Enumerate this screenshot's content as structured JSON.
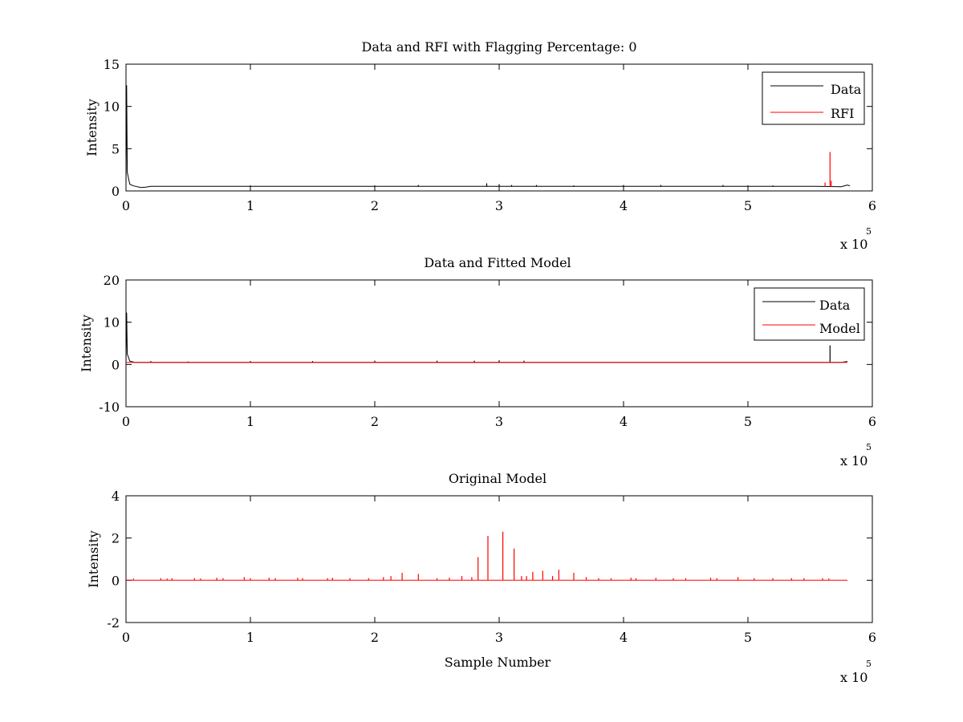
{
  "chart_data": [
    {
      "type": "line",
      "title": "Data and RFI with Flagging Percentage: 0",
      "xlabel": "",
      "ylabel": "Intensity",
      "xlim": [
        0,
        6
      ],
      "ylim": [
        0,
        15
      ],
      "x_ticks": [
        "0",
        "1",
        "2",
        "3",
        "4",
        "5",
        "6"
      ],
      "y_ticks": [
        "0",
        "5",
        "10",
        "15"
      ],
      "x_multiplier": {
        "prefix": "x 10",
        "exponent": "5"
      },
      "legend": "top-right",
      "series": [
        {
          "name": "Data",
          "color": "#000000",
          "baseline": 0.5,
          "points": [
            [
              0.0,
              0.5
            ],
            [
              0.005,
              12.5
            ],
            [
              0.01,
              2.2
            ],
            [
              0.03,
              0.8
            ],
            [
              0.06,
              0.6
            ],
            [
              0.12,
              0.4
            ],
            [
              0.16,
              0.45
            ],
            [
              0.2,
              0.55
            ],
            [
              5.5,
              0.55
            ],
            [
              5.75,
              0.5
            ],
            [
              5.8,
              0.7
            ],
            [
              5.82,
              0.6
            ]
          ],
          "spikes": [
            [
              2.35,
              0.7
            ],
            [
              2.9,
              0.9
            ],
            [
              3.0,
              0.8
            ],
            [
              3.1,
              0.7
            ],
            [
              3.3,
              0.7
            ],
            [
              3.6,
              0.65
            ],
            [
              4.0,
              0.7
            ],
            [
              4.3,
              0.7
            ],
            [
              4.8,
              0.7
            ],
            [
              5.2,
              0.65
            ]
          ]
        },
        {
          "name": "RFI",
          "color": "#ff0000",
          "baseline": 0.5,
          "points": [],
          "spikes": [
            [
              5.62,
              1.0
            ],
            [
              5.66,
              4.6
            ],
            [
              5.67,
              1.2
            ]
          ]
        }
      ]
    },
    {
      "type": "line",
      "title": "Data and Fitted Model",
      "xlabel": "",
      "ylabel": "Intensity",
      "xlim": [
        0,
        6
      ],
      "ylim": [
        -10,
        20
      ],
      "x_ticks": [
        "0",
        "1",
        "2",
        "3",
        "4",
        "5",
        "6"
      ],
      "y_ticks": [
        "-10",
        "0",
        "10",
        "20"
      ],
      "x_multiplier": {
        "prefix": "x 10",
        "exponent": "5"
      },
      "legend": "top-right",
      "series": [
        {
          "name": "Data",
          "color": "#000000",
          "baseline": 0.5,
          "points": [
            [
              0.0,
              0.5
            ],
            [
              0.005,
              12.3
            ],
            [
              0.01,
              2.5
            ],
            [
              0.03,
              0.8
            ],
            [
              0.07,
              0.5
            ],
            [
              5.75,
              0.5
            ],
            [
              5.8,
              0.7
            ]
          ],
          "spikes": [
            [
              0.2,
              0.8
            ],
            [
              0.5,
              0.7
            ],
            [
              1.0,
              0.8
            ],
            [
              1.5,
              0.8
            ],
            [
              2.0,
              0.9
            ],
            [
              2.5,
              0.9
            ],
            [
              2.8,
              0.9
            ],
            [
              3.0,
              1.0
            ],
            [
              3.2,
              0.9
            ],
            [
              5.66,
              4.5
            ]
          ]
        },
        {
          "name": "Model",
          "color": "#ff0000",
          "baseline": 0.5,
          "points": [
            [
              0.0,
              0.5
            ],
            [
              5.8,
              0.5
            ]
          ],
          "spikes": []
        }
      ]
    },
    {
      "type": "line",
      "title": "Original Model",
      "xlabel": "Sample Number",
      "ylabel": "Intensity",
      "xlim": [
        0,
        6
      ],
      "ylim": [
        -2,
        4
      ],
      "x_ticks": [
        "0",
        "1",
        "2",
        "3",
        "4",
        "5",
        "6"
      ],
      "y_ticks": [
        "-2",
        "0",
        "2",
        "4"
      ],
      "x_multiplier": {
        "prefix": "x 10",
        "exponent": "5"
      },
      "legend": "none",
      "series": [
        {
          "name": "",
          "color": "#ff0000",
          "baseline": 0.0,
          "points": [
            [
              0.0,
              0.0
            ],
            [
              5.8,
              0.0
            ]
          ],
          "spikes": [
            [
              0.06,
              0.08
            ],
            [
              0.28,
              0.1
            ],
            [
              0.33,
              0.08
            ],
            [
              0.37,
              0.1
            ],
            [
              0.55,
              0.1
            ],
            [
              0.6,
              0.08
            ],
            [
              0.73,
              0.12
            ],
            [
              0.78,
              0.1
            ],
            [
              0.95,
              0.15
            ],
            [
              1.0,
              0.1
            ],
            [
              1.15,
              0.12
            ],
            [
              1.2,
              0.1
            ],
            [
              1.38,
              0.12
            ],
            [
              1.42,
              0.1
            ],
            [
              1.62,
              0.1
            ],
            [
              1.66,
              0.12
            ],
            [
              1.8,
              0.1
            ],
            [
              1.95,
              0.1
            ],
            [
              2.07,
              0.15
            ],
            [
              2.13,
              0.2
            ],
            [
              2.22,
              0.35
            ],
            [
              2.35,
              0.3
            ],
            [
              2.5,
              0.1
            ],
            [
              2.6,
              0.12
            ],
            [
              2.7,
              0.2
            ],
            [
              2.78,
              0.15
            ],
            [
              2.83,
              1.1
            ],
            [
              2.91,
              2.1
            ],
            [
              3.03,
              2.3
            ],
            [
              3.12,
              1.5
            ],
            [
              3.18,
              0.2
            ],
            [
              3.22,
              0.2
            ],
            [
              3.27,
              0.4
            ],
            [
              3.35,
              0.45
            ],
            [
              3.43,
              0.2
            ],
            [
              3.48,
              0.5
            ],
            [
              3.6,
              0.35
            ],
            [
              3.7,
              0.15
            ],
            [
              3.8,
              0.1
            ],
            [
              3.9,
              0.1
            ],
            [
              4.06,
              0.12
            ],
            [
              4.1,
              0.1
            ],
            [
              4.26,
              0.12
            ],
            [
              4.4,
              0.1
            ],
            [
              4.5,
              0.1
            ],
            [
              4.7,
              0.12
            ],
            [
              4.75,
              0.1
            ],
            [
              4.92,
              0.15
            ],
            [
              5.05,
              0.1
            ],
            [
              5.2,
              0.1
            ],
            [
              5.35,
              0.1
            ],
            [
              5.45,
              0.1
            ],
            [
              5.6,
              0.1
            ],
            [
              5.65,
              0.08
            ]
          ]
        }
      ]
    }
  ]
}
